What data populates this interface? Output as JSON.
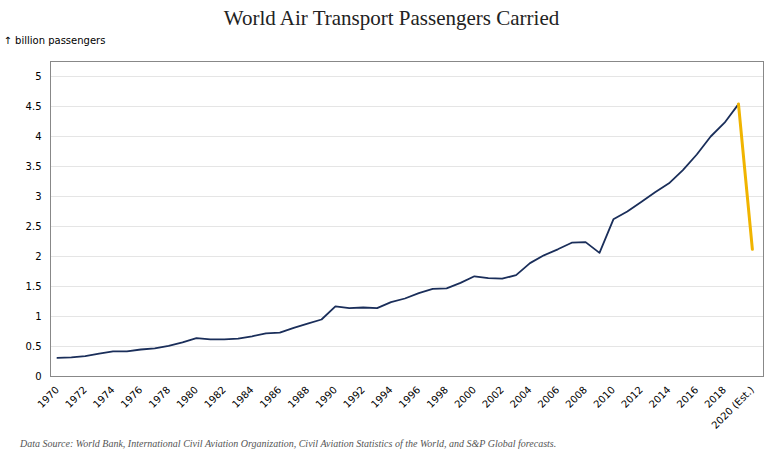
{
  "chart_data": {
    "type": "line",
    "title": "World Air Transport Passengers Carried",
    "ylabel": "billion passengers",
    "footnote": "Data Source: World Bank, International Civil Aviation Organization, Civil Aviation Statistics of the World, and S&P Global forecasts.",
    "xlim": [
      1969.5,
      2020.8
    ],
    "xticks": [
      1970,
      1972,
      1974,
      1976,
      1978,
      1980,
      1982,
      1984,
      1986,
      1988,
      1990,
      1992,
      1994,
      1996,
      1998,
      2000,
      2002,
      2004,
      2006,
      2008,
      2010,
      2012,
      2014,
      2016,
      2018,
      {
        "value": 2020,
        "label": "2020 (Est.)"
      }
    ],
    "ylim": [
      0,
      5.25
    ],
    "yticks": [
      0,
      0.5,
      1.0,
      1.5,
      2.0,
      2.5,
      3.0,
      3.5,
      4.0,
      4.5,
      5.0
    ],
    "grid": true,
    "series": [
      {
        "color": "#1a2e5a",
        "x": [
          1970,
          1971,
          1972,
          1973,
          1974,
          1975,
          1976,
          1977,
          1978,
          1979,
          1980,
          1981,
          1982,
          1983,
          1984,
          1985,
          1986,
          1987,
          1988,
          1989,
          1990,
          1991,
          1992,
          1993,
          1994,
          1995,
          1996,
          1997,
          1998,
          1999,
          2000,
          2001,
          2002,
          2003,
          2004,
          2005,
          2006,
          2007,
          2008,
          2009,
          2010,
          2011,
          2012,
          2013,
          2014,
          2015,
          2016,
          2017,
          2018,
          2019
        ],
        "values": [
          0.31,
          0.32,
          0.34,
          0.38,
          0.42,
          0.42,
          0.45,
          0.47,
          0.51,
          0.57,
          0.64,
          0.62,
          0.62,
          0.63,
          0.67,
          0.72,
          0.73,
          0.81,
          0.88,
          0.95,
          1.17,
          1.14,
          1.15,
          1.14,
          1.24,
          1.3,
          1.39,
          1.46,
          1.47,
          1.56,
          1.67,
          1.64,
          1.63,
          1.69,
          1.89,
          2.02,
          2.12,
          2.23,
          2.24,
          2.06,
          2.62,
          2.75,
          2.91,
          3.07,
          3.22,
          3.44,
          3.7,
          4.0,
          4.23,
          4.54
        ]
      },
      {
        "color": "#f0b400",
        "x": [
          2019,
          2020
        ],
        "values": [
          4.54,
          2.12
        ]
      }
    ]
  }
}
